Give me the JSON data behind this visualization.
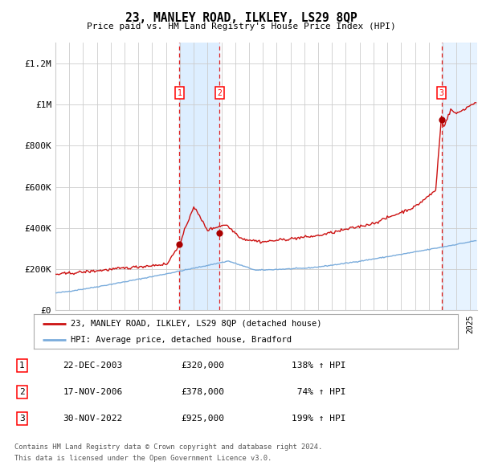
{
  "title": "23, MANLEY ROAD, ILKLEY, LS29 8QP",
  "subtitle": "Price paid vs. HM Land Registry's House Price Index (HPI)",
  "ylabel_ticks": [
    "£0",
    "£200K",
    "£400K",
    "£600K",
    "£800K",
    "£1M",
    "£1.2M"
  ],
  "ytick_vals": [
    0,
    200000,
    400000,
    600000,
    800000,
    1000000,
    1200000
  ],
  "ylim": [
    0,
    1300000
  ],
  "xlim_start": 1995.0,
  "xlim_end": 2025.5,
  "sale_years": [
    2003.97,
    2006.88,
    2022.92
  ],
  "sale_prices": [
    320000,
    378000,
    925000
  ],
  "sale_labels": [
    "1",
    "2",
    "3"
  ],
  "hpi_line_color": "#7aacdc",
  "price_line_color": "#cc1111",
  "dot_color": "#aa0000",
  "dashed_line_color": "#dd2222",
  "shade_color": "#ddeeff",
  "grid_color": "#cccccc",
  "bg_color": "#ffffff",
  "legend_label_price": "23, MANLEY ROAD, ILKLEY, LS29 8QP (detached house)",
  "legend_label_hpi": "HPI: Average price, detached house, Bradford",
  "footnote1": "Contains HM Land Registry data © Crown copyright and database right 2024.",
  "footnote2": "This data is licensed under the Open Government Licence v3.0.",
  "table_rows": [
    [
      "1",
      "22-DEC-2003",
      "£320,000",
      "138% ↑ HPI"
    ],
    [
      "2",
      "17-NOV-2006",
      "£378,000",
      " 74% ↑ HPI"
    ],
    [
      "3",
      "30-NOV-2022",
      "£925,000",
      "199% ↑ HPI"
    ]
  ]
}
